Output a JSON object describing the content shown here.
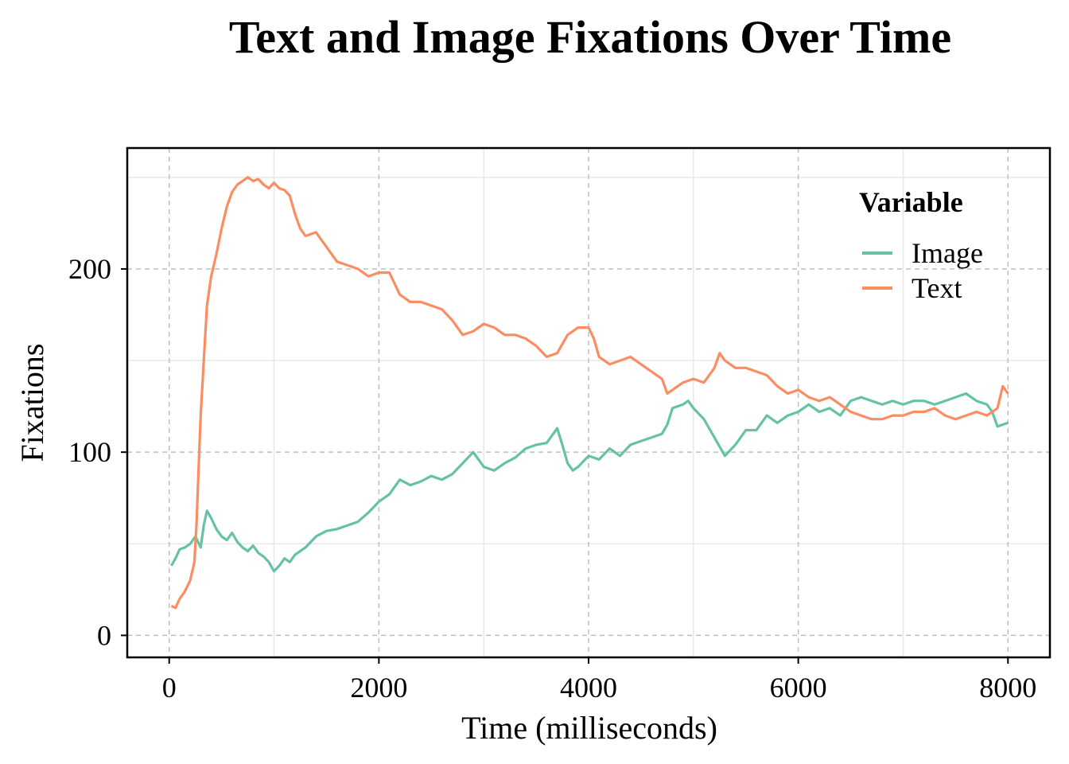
{
  "colors": {
    "Image": "#66c2a5",
    "Text": "#fc8d62",
    "grid_major": "#bebebe",
    "grid_minor": "#e8e8e8"
  },
  "chart_data": {
    "type": "line",
    "title": "Text and Image Fixations Over Time",
    "xlabel": "Time (milliseconds)",
    "ylabel": "Fixations",
    "xlim": [
      -400,
      8400
    ],
    "ylim": [
      -12,
      266
    ],
    "x_ticks": [
      0,
      2000,
      4000,
      6000,
      8000
    ],
    "y_ticks": [
      0,
      100,
      200
    ],
    "grid": true,
    "legend": {
      "title": "Variable",
      "position": "top-right",
      "entries": [
        "Image",
        "Text"
      ]
    },
    "series": [
      {
        "name": "Image",
        "color": "#66c2a5",
        "points": [
          [
            20,
            38
          ],
          [
            60,
            42
          ],
          [
            100,
            47
          ],
          [
            150,
            48
          ],
          [
            200,
            50
          ],
          [
            250,
            54
          ],
          [
            300,
            48
          ],
          [
            330,
            60
          ],
          [
            360,
            68
          ],
          [
            400,
            64
          ],
          [
            450,
            58
          ],
          [
            500,
            54
          ],
          [
            550,
            52
          ],
          [
            600,
            56
          ],
          [
            650,
            51
          ],
          [
            700,
            48
          ],
          [
            750,
            46
          ],
          [
            800,
            49
          ],
          [
            850,
            45
          ],
          [
            900,
            43
          ],
          [
            950,
            40
          ],
          [
            1000,
            35
          ],
          [
            1050,
            38
          ],
          [
            1100,
            42
          ],
          [
            1150,
            40
          ],
          [
            1200,
            44
          ],
          [
            1300,
            48
          ],
          [
            1400,
            54
          ],
          [
            1500,
            57
          ],
          [
            1600,
            58
          ],
          [
            1700,
            60
          ],
          [
            1800,
            62
          ],
          [
            1900,
            67
          ],
          [
            2000,
            73
          ],
          [
            2100,
            77
          ],
          [
            2200,
            85
          ],
          [
            2300,
            82
          ],
          [
            2400,
            84
          ],
          [
            2500,
            87
          ],
          [
            2600,
            85
          ],
          [
            2700,
            88
          ],
          [
            2800,
            94
          ],
          [
            2900,
            100
          ],
          [
            3000,
            92
          ],
          [
            3100,
            90
          ],
          [
            3200,
            94
          ],
          [
            3300,
            97
          ],
          [
            3400,
            102
          ],
          [
            3500,
            104
          ],
          [
            3600,
            105
          ],
          [
            3700,
            113
          ],
          [
            3750,
            104
          ],
          [
            3800,
            94
          ],
          [
            3850,
            90
          ],
          [
            3900,
            92
          ],
          [
            4000,
            98
          ],
          [
            4100,
            96
          ],
          [
            4200,
            102
          ],
          [
            4300,
            98
          ],
          [
            4400,
            104
          ],
          [
            4500,
            106
          ],
          [
            4600,
            108
          ],
          [
            4700,
            110
          ],
          [
            4750,
            115
          ],
          [
            4800,
            124
          ],
          [
            4900,
            126
          ],
          [
            4950,
            128
          ],
          [
            5000,
            124
          ],
          [
            5100,
            118
          ],
          [
            5200,
            108
          ],
          [
            5300,
            98
          ],
          [
            5400,
            104
          ],
          [
            5500,
            112
          ],
          [
            5600,
            112
          ],
          [
            5700,
            120
          ],
          [
            5800,
            116
          ],
          [
            5900,
            120
          ],
          [
            6000,
            122
          ],
          [
            6100,
            126
          ],
          [
            6200,
            122
          ],
          [
            6300,
            124
          ],
          [
            6400,
            120
          ],
          [
            6500,
            128
          ],
          [
            6600,
            130
          ],
          [
            6700,
            128
          ],
          [
            6800,
            126
          ],
          [
            6900,
            128
          ],
          [
            7000,
            126
          ],
          [
            7100,
            128
          ],
          [
            7200,
            128
          ],
          [
            7300,
            126
          ],
          [
            7400,
            128
          ],
          [
            7500,
            130
          ],
          [
            7600,
            132
          ],
          [
            7700,
            128
          ],
          [
            7800,
            126
          ],
          [
            7850,
            122
          ],
          [
            7900,
            114
          ],
          [
            8000,
            116
          ]
        ]
      },
      {
        "name": "Text",
        "color": "#fc8d62",
        "points": [
          [
            20,
            16
          ],
          [
            60,
            15
          ],
          [
            100,
            20
          ],
          [
            150,
            24
          ],
          [
            200,
            30
          ],
          [
            240,
            40
          ],
          [
            260,
            60
          ],
          [
            280,
            90
          ],
          [
            300,
            120
          ],
          [
            330,
            150
          ],
          [
            360,
            180
          ],
          [
            400,
            196
          ],
          [
            450,
            208
          ],
          [
            500,
            222
          ],
          [
            550,
            234
          ],
          [
            600,
            242
          ],
          [
            650,
            246
          ],
          [
            700,
            248
          ],
          [
            750,
            250
          ],
          [
            800,
            248
          ],
          [
            850,
            249
          ],
          [
            900,
            246
          ],
          [
            950,
            244
          ],
          [
            1000,
            247
          ],
          [
            1050,
            244
          ],
          [
            1100,
            243
          ],
          [
            1150,
            240
          ],
          [
            1200,
            230
          ],
          [
            1250,
            222
          ],
          [
            1300,
            218
          ],
          [
            1400,
            220
          ],
          [
            1500,
            212
          ],
          [
            1600,
            204
          ],
          [
            1700,
            202
          ],
          [
            1800,
            200
          ],
          [
            1900,
            196
          ],
          [
            2000,
            198
          ],
          [
            2100,
            198
          ],
          [
            2150,
            192
          ],
          [
            2200,
            186
          ],
          [
            2300,
            182
          ],
          [
            2400,
            182
          ],
          [
            2500,
            180
          ],
          [
            2600,
            178
          ],
          [
            2700,
            172
          ],
          [
            2800,
            164
          ],
          [
            2900,
            166
          ],
          [
            3000,
            170
          ],
          [
            3100,
            168
          ],
          [
            3200,
            164
          ],
          [
            3300,
            164
          ],
          [
            3400,
            162
          ],
          [
            3500,
            158
          ],
          [
            3600,
            152
          ],
          [
            3700,
            154
          ],
          [
            3800,
            164
          ],
          [
            3900,
            168
          ],
          [
            4000,
            168
          ],
          [
            4050,
            162
          ],
          [
            4100,
            152
          ],
          [
            4200,
            148
          ],
          [
            4300,
            150
          ],
          [
            4400,
            152
          ],
          [
            4500,
            148
          ],
          [
            4600,
            144
          ],
          [
            4700,
            140
          ],
          [
            4750,
            132
          ],
          [
            4800,
            134
          ],
          [
            4900,
            138
          ],
          [
            5000,
            140
          ],
          [
            5100,
            138
          ],
          [
            5200,
            146
          ],
          [
            5250,
            154
          ],
          [
            5300,
            150
          ],
          [
            5400,
            146
          ],
          [
            5500,
            146
          ],
          [
            5600,
            144
          ],
          [
            5700,
            142
          ],
          [
            5800,
            136
          ],
          [
            5900,
            132
          ],
          [
            6000,
            134
          ],
          [
            6100,
            130
          ],
          [
            6200,
            128
          ],
          [
            6300,
            130
          ],
          [
            6400,
            126
          ],
          [
            6500,
            122
          ],
          [
            6600,
            120
          ],
          [
            6700,
            118
          ],
          [
            6800,
            118
          ],
          [
            6900,
            120
          ],
          [
            7000,
            120
          ],
          [
            7100,
            122
          ],
          [
            7200,
            122
          ],
          [
            7300,
            124
          ],
          [
            7400,
            120
          ],
          [
            7500,
            118
          ],
          [
            7600,
            120
          ],
          [
            7700,
            122
          ],
          [
            7800,
            120
          ],
          [
            7900,
            124
          ],
          [
            7950,
            136
          ],
          [
            8000,
            132
          ]
        ]
      }
    ]
  }
}
